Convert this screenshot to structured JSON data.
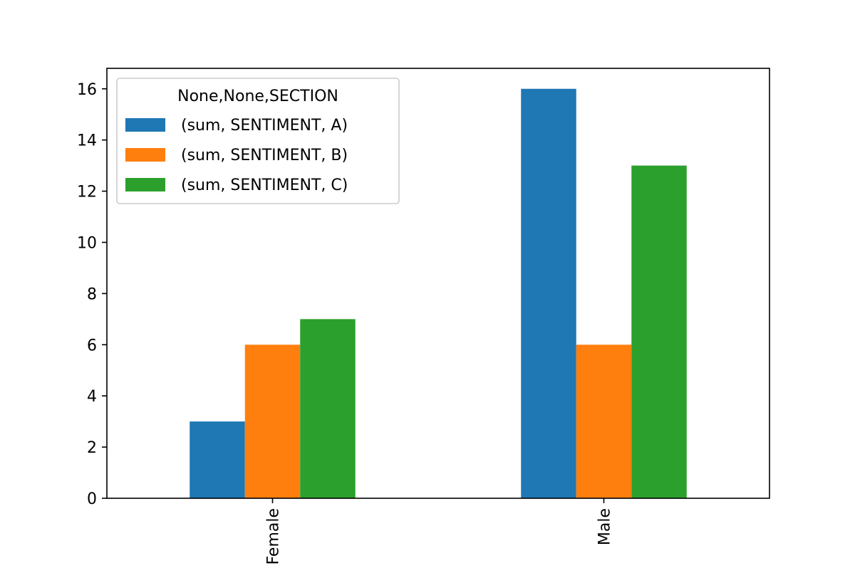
{
  "chart_data": {
    "type": "bar",
    "categories": [
      "Female",
      "Male"
    ],
    "series": [
      {
        "name": "(sum, SENTIMENT, A)",
        "values": [
          3,
          16
        ],
        "color": "#1f77b4"
      },
      {
        "name": "(sum, SENTIMENT, B)",
        "values": [
          6,
          6
        ],
        "color": "#ff7f0e"
      },
      {
        "name": "(sum, SENTIMENT, C)",
        "values": [
          7,
          13
        ],
        "color": "#2ca02c"
      }
    ],
    "title": "",
    "xlabel": "",
    "ylabel": "",
    "ylim": [
      0,
      16.8
    ],
    "yticks": [
      0,
      2,
      4,
      6,
      8,
      10,
      12,
      14,
      16
    ],
    "xtick_rotation": 90,
    "grid": false,
    "legend": {
      "title": "None,None,SECTION",
      "placement": "upper-left"
    }
  }
}
